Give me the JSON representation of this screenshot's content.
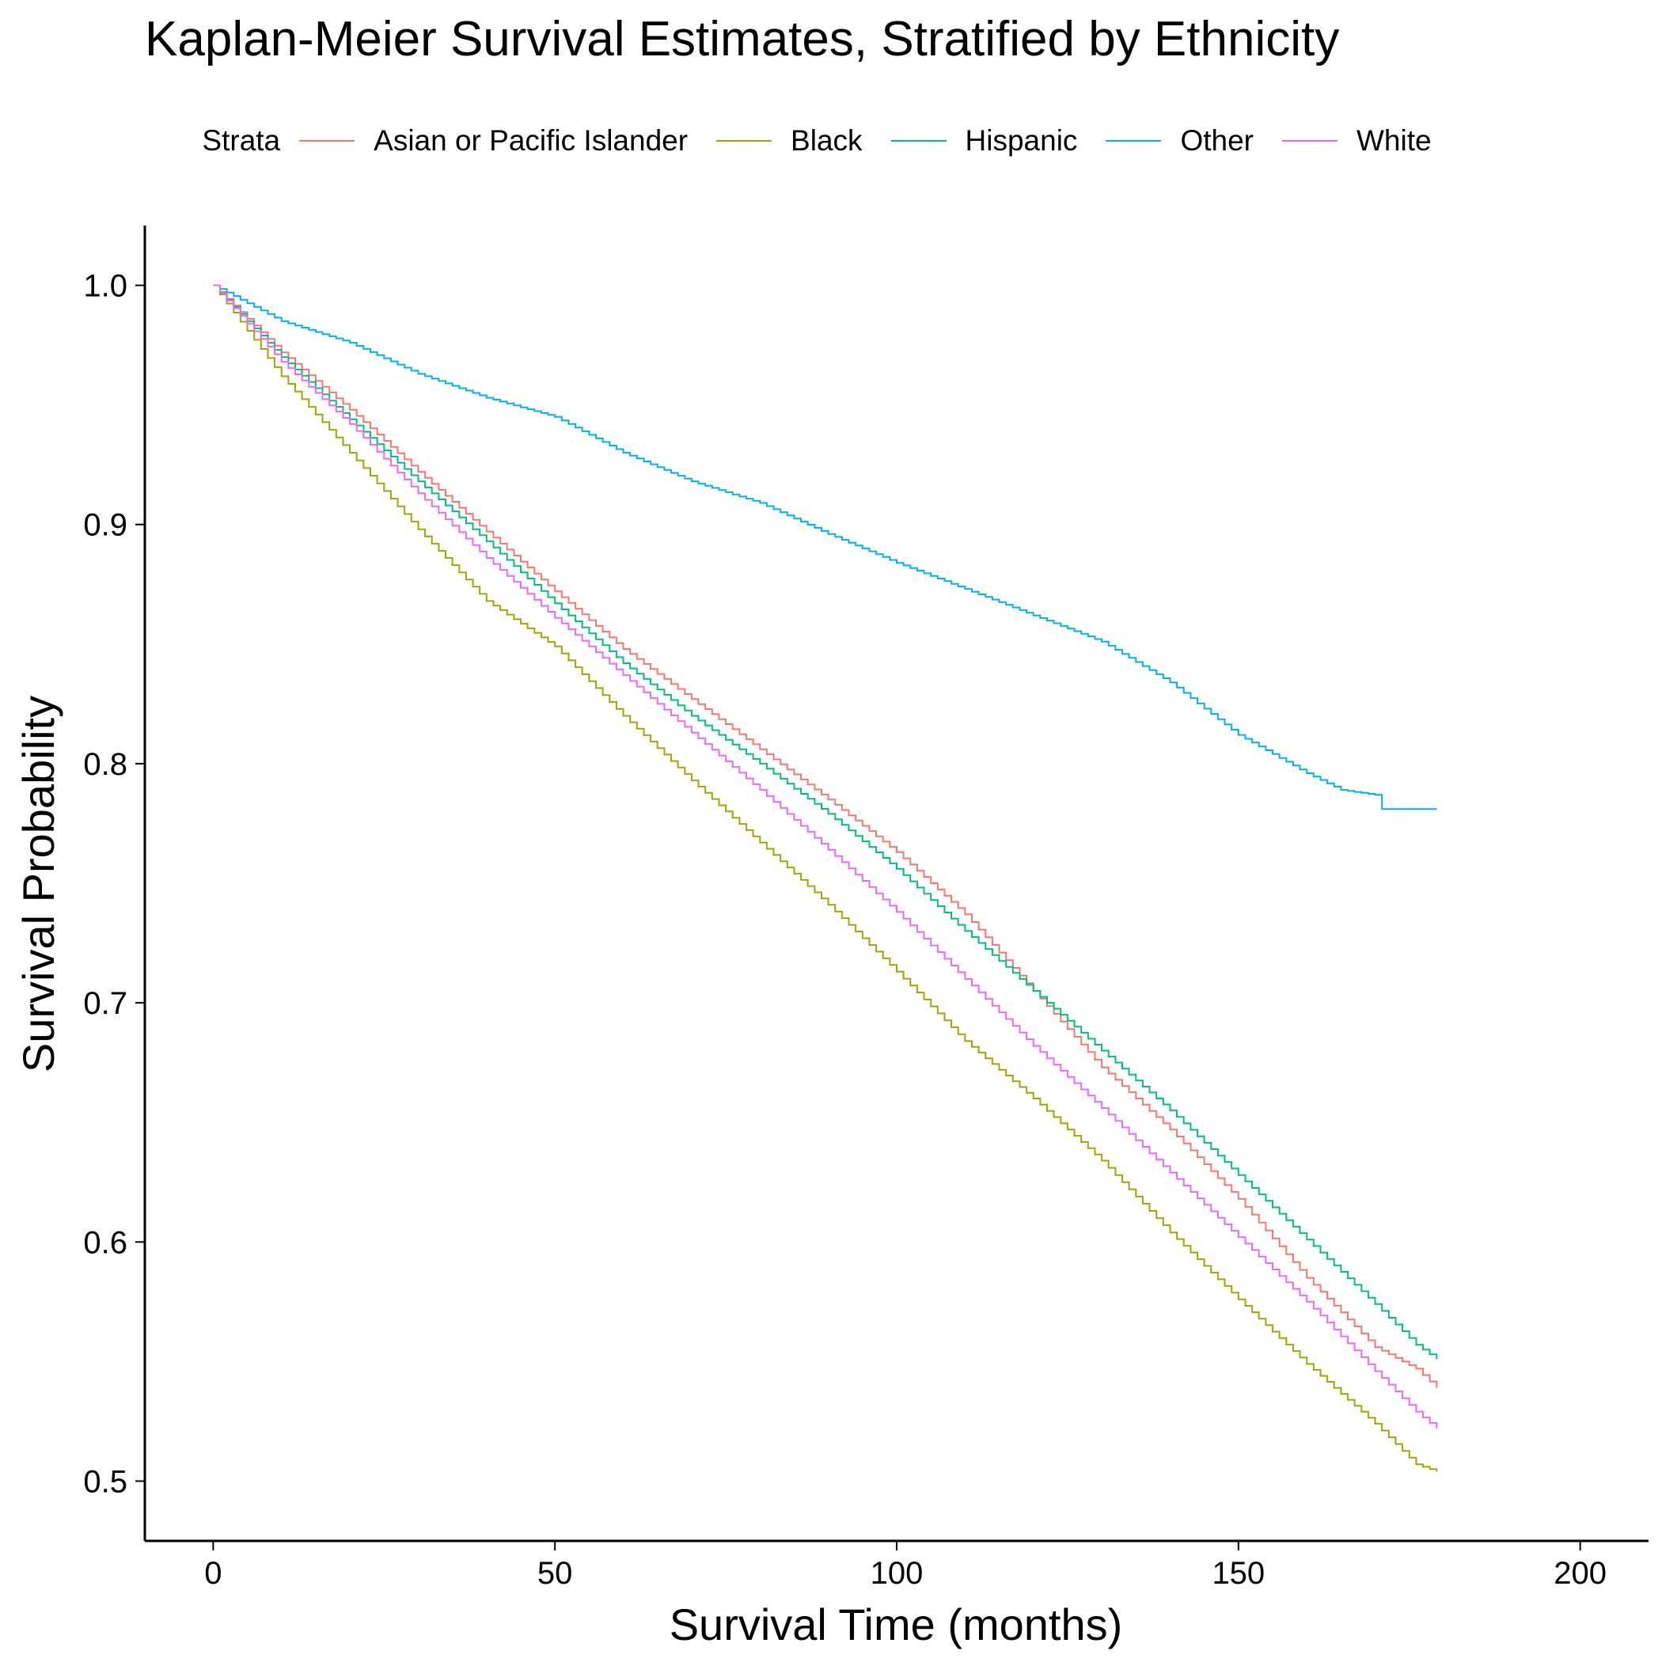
{
  "chart_data": {
    "type": "line",
    "step": true,
    "title": "Kaplan-Meier Survival Estimates, Stratified by Ethnicity",
    "xlabel": "Survival Time (months)",
    "ylabel": "Survival Probability",
    "xlim": [
      -10,
      210
    ],
    "ylim": [
      0.475,
      1.025
    ],
    "xticks": [
      0,
      50,
      100,
      150,
      200
    ],
    "xtick_labels": [
      "0",
      "50",
      "100",
      "150",
      "200"
    ],
    "yticks": [
      0.5,
      0.6,
      0.7,
      0.8,
      0.9,
      1.0
    ],
    "ytick_labels": [
      "0.5",
      "0.6",
      "0.7",
      "0.8",
      "0.9",
      "1.0"
    ],
    "grid": false,
    "legend_title": "Strata",
    "legend_position": "top",
    "series": [
      {
        "name": "Asian or Pacific Islander",
        "color": "#F8766D",
        "x": [
          0,
          10,
          20,
          30,
          40,
          50,
          60,
          70,
          80,
          90,
          100,
          110,
          120,
          130,
          140,
          150,
          160,
          170,
          176,
          179
        ],
        "y": [
          1.0,
          0.972,
          0.948,
          0.922,
          0.897,
          0.872,
          0.848,
          0.827,
          0.806,
          0.785,
          0.763,
          0.737,
          0.705,
          0.673,
          0.647,
          0.618,
          0.585,
          0.556,
          0.547,
          0.539
        ]
      },
      {
        "name": "Black",
        "color": "#A3A500",
        "x": [
          0,
          10,
          20,
          30,
          40,
          50,
          60,
          70,
          80,
          90,
          100,
          110,
          120,
          130,
          140,
          150,
          160,
          170,
          176,
          179
        ],
        "y": [
          1.0,
          0.962,
          0.93,
          0.898,
          0.868,
          0.849,
          0.82,
          0.793,
          0.767,
          0.741,
          0.713,
          0.684,
          0.66,
          0.634,
          0.604,
          0.576,
          0.549,
          0.524,
          0.507,
          0.504
        ]
      },
      {
        "name": "Hispanic",
        "color": "#00BF7D",
        "x": [
          0,
          10,
          20,
          30,
          40,
          50,
          60,
          70,
          80,
          90,
          100,
          110,
          120,
          130,
          140,
          150,
          160,
          170,
          176,
          179
        ],
        "y": [
          1.0,
          0.97,
          0.944,
          0.918,
          0.893,
          0.867,
          0.842,
          0.82,
          0.8,
          0.779,
          0.756,
          0.73,
          0.705,
          0.68,
          0.655,
          0.628,
          0.601,
          0.574,
          0.557,
          0.551
        ]
      },
      {
        "name": "Other",
        "color": "#00B0F6",
        "x": [
          0,
          10,
          20,
          30,
          40,
          50,
          60,
          70,
          80,
          90,
          100,
          110,
          120,
          130,
          140,
          145,
          150,
          160,
          165,
          170,
          171,
          179
        ],
        "y": [
          1.0,
          0.985,
          0.976,
          0.963,
          0.953,
          0.945,
          0.93,
          0.918,
          0.909,
          0.896,
          0.884,
          0.873,
          0.862,
          0.851,
          0.834,
          0.823,
          0.812,
          0.796,
          0.789,
          0.787,
          0.781,
          0.781
        ]
      },
      {
        "name": "White",
        "color": "#E76BF3",
        "x": [
          0,
          10,
          20,
          30,
          40,
          50,
          60,
          70,
          80,
          90,
          100,
          110,
          120,
          130,
          140,
          150,
          160,
          170,
          176,
          179
        ],
        "y": [
          1.0,
          0.968,
          0.942,
          0.913,
          0.886,
          0.861,
          0.837,
          0.813,
          0.789,
          0.764,
          0.738,
          0.71,
          0.682,
          0.656,
          0.629,
          0.602,
          0.575,
          0.546,
          0.529,
          0.522
        ]
      }
    ]
  }
}
